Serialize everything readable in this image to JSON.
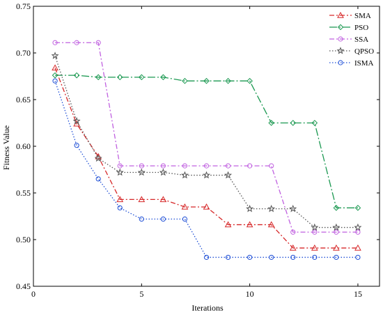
{
  "chart_data": {
    "type": "line",
    "title": "",
    "xlabel": "Iterations",
    "ylabel": "Fitness Value",
    "xlim": [
      0,
      16
    ],
    "ylim": [
      0.45,
      0.75
    ],
    "xticks": [
      0,
      5,
      10,
      15
    ],
    "xtick_labels": [
      "0",
      "5",
      "10",
      "15"
    ],
    "yticks": [
      0.45,
      0.5,
      0.55,
      0.6,
      0.65,
      0.7,
      0.75
    ],
    "ytick_labels": [
      "0.45",
      "0.50",
      "0.55",
      "0.60",
      "0.65",
      "0.70",
      "0.75"
    ],
    "grid": false,
    "legend_position": "top-right",
    "x": [
      1,
      2,
      3,
      4,
      5,
      6,
      7,
      8,
      9,
      10,
      11,
      12,
      13,
      14,
      15
    ],
    "series": [
      {
        "name": "SMA",
        "color": "#d62728",
        "dash": "dashdot",
        "marker": "triangle",
        "values": [
          0.684,
          0.624,
          0.589,
          0.543,
          0.543,
          0.543,
          0.535,
          0.535,
          0.516,
          0.516,
          0.516,
          0.491,
          0.491,
          0.491,
          0.491
        ]
      },
      {
        "name": "PSO",
        "color": "#1a9850",
        "dash": "longdashdot",
        "marker": "diamond",
        "values": [
          0.676,
          0.676,
          0.674,
          0.674,
          0.674,
          0.674,
          0.67,
          0.67,
          0.67,
          0.67,
          0.625,
          0.625,
          0.625,
          0.534,
          0.534
        ]
      },
      {
        "name": "SSA",
        "color": "#c060e0",
        "dash": "dashdot",
        "marker": "circle",
        "values": [
          0.711,
          0.711,
          0.711,
          0.579,
          0.579,
          0.579,
          0.579,
          0.579,
          0.579,
          0.579,
          0.579,
          0.508,
          0.508,
          0.508,
          0.508
        ]
      },
      {
        "name": "QPSO",
        "color": "#555555",
        "dash": "dotted",
        "marker": "star",
        "values": [
          0.697,
          0.627,
          0.587,
          0.572,
          0.572,
          0.572,
          0.569,
          0.569,
          0.569,
          0.533,
          0.533,
          0.533,
          0.513,
          0.513,
          0.513
        ]
      },
      {
        "name": "ISMA",
        "color": "#1f4fd6",
        "dash": "dotted",
        "marker": "circle",
        "values": [
          0.67,
          0.601,
          0.565,
          0.534,
          0.522,
          0.522,
          0.522,
          0.481,
          0.481,
          0.481,
          0.481,
          0.481,
          0.481,
          0.481,
          0.481
        ]
      }
    ]
  }
}
